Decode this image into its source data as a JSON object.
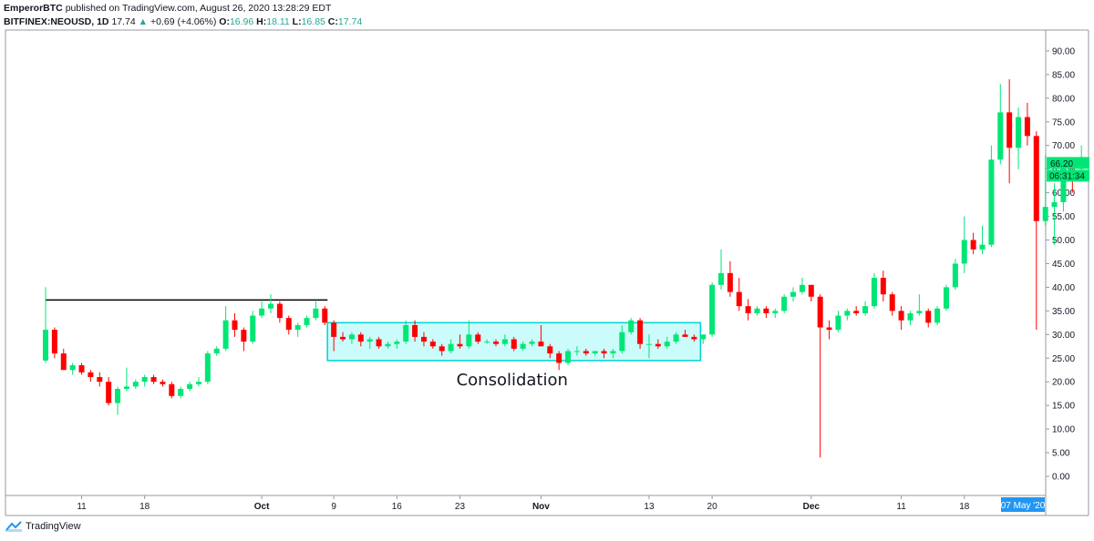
{
  "header": {
    "publisher": "EmperorBTC",
    "published_text": "published on TradingView.com, August 26, 2020 13:28:29 EDT",
    "symbol": "BITFINEX:NEOUSD, 1D",
    "last_price": "17.74",
    "change_arrow": "▲",
    "change": "+0.69 (+4.06%)",
    "o_label": "O:",
    "o_value": "16.96",
    "h_label": "H:",
    "h_value": "18.11",
    "l_label": "L:",
    "l_value": "16.85",
    "c_label": "C:",
    "c_value": "17.74"
  },
  "footer": {
    "brand": "TradingView"
  },
  "colors": {
    "up": "#00e676",
    "down": "#ff0000",
    "consolidation_fill": "#ccfbfb",
    "consolidation_border": "#00d2d2",
    "price_tag": "#00e676",
    "date_tag": "#2196f3"
  },
  "chart_data": {
    "type": "candlestick",
    "ylim": [
      -4,
      94
    ],
    "y_ticks": [
      "90.00",
      "85.00",
      "80.00",
      "75.00",
      "70.00",
      "65.00",
      "60.00",
      "55.00",
      "50.00",
      "45.00",
      "40.00",
      "35.00",
      "30.00",
      "25.00",
      "20.00",
      "15.00",
      "10.00",
      "5.00",
      "0.00"
    ],
    "x_ticks": [
      {
        "label": "11",
        "bar": 4,
        "bold": false
      },
      {
        "label": "18",
        "bar": 11,
        "bold": false
      },
      {
        "label": "Oct",
        "bar": 24,
        "bold": true
      },
      {
        "label": "9",
        "bar": 32,
        "bold": false
      },
      {
        "label": "16",
        "bar": 39,
        "bold": false
      },
      {
        "label": "23",
        "bar": 46,
        "bold": false
      },
      {
        "label": "Nov",
        "bar": 55,
        "bold": true
      },
      {
        "label": "13",
        "bar": 67,
        "bold": false
      },
      {
        "label": "20",
        "bar": 74,
        "bold": false
      },
      {
        "label": "Dec",
        "bar": 85,
        "bold": true
      },
      {
        "label": "11",
        "bar": 95,
        "bold": false
      },
      {
        "label": "18",
        "bar": 102,
        "bold": false
      }
    ],
    "candles": [
      {
        "o": 24.5,
        "h": 40.0,
        "l": 24.0,
        "c": 31.0
      },
      {
        "o": 31.0,
        "h": 31.5,
        "l": 25.0,
        "c": 26.0
      },
      {
        "o": 26.0,
        "h": 27.0,
        "l": 22.5,
        "c": 22.5
      },
      {
        "o": 22.5,
        "h": 24.0,
        "l": 21.5,
        "c": 23.5
      },
      {
        "o": 23.5,
        "h": 24.0,
        "l": 21.5,
        "c": 22.0
      },
      {
        "o": 22.0,
        "h": 22.5,
        "l": 20.0,
        "c": 21.0
      },
      {
        "o": 21.0,
        "h": 22.0,
        "l": 19.0,
        "c": 20.0
      },
      {
        "o": 20.0,
        "h": 21.0,
        "l": 15.0,
        "c": 15.5
      },
      {
        "o": 15.5,
        "h": 19.0,
        "l": 13.0,
        "c": 18.5
      },
      {
        "o": 18.5,
        "h": 23.0,
        "l": 18.0,
        "c": 19.0
      },
      {
        "o": 19.0,
        "h": 20.5,
        "l": 18.5,
        "c": 20.0
      },
      {
        "o": 20.0,
        "h": 21.5,
        "l": 19.0,
        "c": 21.0
      },
      {
        "o": 21.0,
        "h": 21.5,
        "l": 19.5,
        "c": 20.0
      },
      {
        "o": 20.0,
        "h": 20.5,
        "l": 19.0,
        "c": 19.5
      },
      {
        "o": 19.5,
        "h": 20.0,
        "l": 16.5,
        "c": 17.0
      },
      {
        "o": 17.0,
        "h": 19.0,
        "l": 16.5,
        "c": 18.5
      },
      {
        "o": 18.5,
        "h": 20.0,
        "l": 18.0,
        "c": 19.5
      },
      {
        "o": 19.5,
        "h": 21.0,
        "l": 19.0,
        "c": 20.0
      },
      {
        "o": 20.0,
        "h": 26.5,
        "l": 19.5,
        "c": 26.0
      },
      {
        "o": 26.0,
        "h": 27.5,
        "l": 25.5,
        "c": 27.0
      },
      {
        "o": 27.0,
        "h": 36.0,
        "l": 26.5,
        "c": 33.0
      },
      {
        "o": 33.0,
        "h": 34.5,
        "l": 29.5,
        "c": 31.0
      },
      {
        "o": 31.0,
        "h": 31.5,
        "l": 26.5,
        "c": 28.5
      },
      {
        "o": 28.5,
        "h": 35.0,
        "l": 28.0,
        "c": 34.0
      },
      {
        "o": 34.0,
        "h": 37.0,
        "l": 33.5,
        "c": 35.5
      },
      {
        "o": 35.5,
        "h": 38.5,
        "l": 34.5,
        "c": 36.5
      },
      {
        "o": 36.5,
        "h": 37.0,
        "l": 32.5,
        "c": 33.5
      },
      {
        "o": 33.5,
        "h": 34.0,
        "l": 30.0,
        "c": 31.0
      },
      {
        "o": 31.0,
        "h": 32.5,
        "l": 29.5,
        "c": 32.0
      },
      {
        "o": 32.0,
        "h": 34.0,
        "l": 31.5,
        "c": 33.5
      },
      {
        "o": 33.5,
        "h": 37.0,
        "l": 33.0,
        "c": 35.5
      },
      {
        "o": 35.5,
        "h": 36.0,
        "l": 32.0,
        "c": 32.5
      },
      {
        "o": 32.5,
        "h": 33.0,
        "l": 26.5,
        "c": 29.5
      },
      {
        "o": 29.5,
        "h": 30.5,
        "l": 28.5,
        "c": 29.0
      },
      {
        "o": 29.0,
        "h": 30.5,
        "l": 28.0,
        "c": 30.0
      },
      {
        "o": 30.0,
        "h": 30.5,
        "l": 27.5,
        "c": 28.5
      },
      {
        "o": 28.5,
        "h": 29.5,
        "l": 27.0,
        "c": 29.0
      },
      {
        "o": 29.0,
        "h": 29.5,
        "l": 27.0,
        "c": 27.5
      },
      {
        "o": 27.5,
        "h": 28.5,
        "l": 27.0,
        "c": 28.0
      },
      {
        "o": 28.0,
        "h": 29.0,
        "l": 27.0,
        "c": 28.5
      },
      {
        "o": 28.5,
        "h": 33.0,
        "l": 28.0,
        "c": 32.0
      },
      {
        "o": 32.0,
        "h": 33.0,
        "l": 28.5,
        "c": 29.5
      },
      {
        "o": 29.5,
        "h": 30.5,
        "l": 27.5,
        "c": 28.5
      },
      {
        "o": 28.5,
        "h": 29.0,
        "l": 27.0,
        "c": 27.5
      },
      {
        "o": 27.5,
        "h": 28.0,
        "l": 25.5,
        "c": 26.5
      },
      {
        "o": 26.5,
        "h": 29.0,
        "l": 26.0,
        "c": 28.0
      },
      {
        "o": 28.0,
        "h": 30.0,
        "l": 27.0,
        "c": 27.5
      },
      {
        "o": 27.5,
        "h": 33.0,
        "l": 27.0,
        "c": 30.0
      },
      {
        "o": 30.0,
        "h": 30.5,
        "l": 28.0,
        "c": 28.5
      },
      {
        "o": 28.5,
        "h": 29.0,
        "l": 28.0,
        "c": 28.5
      },
      {
        "o": 28.5,
        "h": 29.0,
        "l": 27.5,
        "c": 28.0
      },
      {
        "o": 28.0,
        "h": 30.0,
        "l": 27.5,
        "c": 29.0
      },
      {
        "o": 29.0,
        "h": 29.5,
        "l": 26.5,
        "c": 27.0
      },
      {
        "o": 27.0,
        "h": 28.5,
        "l": 26.5,
        "c": 28.0
      },
      {
        "o": 28.0,
        "h": 29.0,
        "l": 27.5,
        "c": 28.5
      },
      {
        "o": 28.5,
        "h": 32.0,
        "l": 28.0,
        "c": 27.5
      },
      {
        "o": 27.5,
        "h": 28.0,
        "l": 25.0,
        "c": 26.0
      },
      {
        "o": 26.0,
        "h": 26.5,
        "l": 22.5,
        "c": 24.0
      },
      {
        "o": 24.0,
        "h": 27.0,
        "l": 23.5,
        "c": 26.5
      },
      {
        "o": 26.5,
        "h": 27.5,
        "l": 25.5,
        "c": 26.5
      },
      {
        "o": 26.5,
        "h": 27.0,
        "l": 25.5,
        "c": 26.0
      },
      {
        "o": 26.0,
        "h": 26.5,
        "l": 25.5,
        "c": 26.5
      },
      {
        "o": 26.5,
        "h": 27.0,
        "l": 25.0,
        "c": 26.0
      },
      {
        "o": 26.0,
        "h": 27.0,
        "l": 25.0,
        "c": 26.5
      },
      {
        "o": 26.5,
        "h": 32.0,
        "l": 26.0,
        "c": 30.5
      },
      {
        "o": 30.5,
        "h": 33.5,
        "l": 30.0,
        "c": 33.0
      },
      {
        "o": 33.0,
        "h": 33.5,
        "l": 27.0,
        "c": 28.0
      },
      {
        "o": 28.0,
        "h": 30.0,
        "l": 25.0,
        "c": 28.0
      },
      {
        "o": 28.0,
        "h": 29.0,
        "l": 27.0,
        "c": 27.5
      },
      {
        "o": 27.5,
        "h": 29.5,
        "l": 27.0,
        "c": 28.5
      },
      {
        "o": 28.5,
        "h": 30.5,
        "l": 28.0,
        "c": 30.0
      },
      {
        "o": 30.0,
        "h": 31.0,
        "l": 29.5,
        "c": 29.5
      },
      {
        "o": 29.5,
        "h": 30.0,
        "l": 28.5,
        "c": 29.0
      },
      {
        "o": 29.0,
        "h": 30.0,
        "l": 28.0,
        "c": 30.0
      },
      {
        "o": 30.0,
        "h": 41.0,
        "l": 29.5,
        "c": 40.5
      },
      {
        "o": 40.5,
        "h": 48.0,
        "l": 39.5,
        "c": 43.0
      },
      {
        "o": 43.0,
        "h": 45.5,
        "l": 38.0,
        "c": 39.0
      },
      {
        "o": 39.0,
        "h": 42.0,
        "l": 35.0,
        "c": 36.0
      },
      {
        "o": 36.0,
        "h": 37.5,
        "l": 33.0,
        "c": 34.5
      },
      {
        "o": 34.5,
        "h": 36.0,
        "l": 34.0,
        "c": 35.5
      },
      {
        "o": 35.5,
        "h": 36.0,
        "l": 33.5,
        "c": 34.5
      },
      {
        "o": 34.5,
        "h": 35.5,
        "l": 33.5,
        "c": 35.0
      },
      {
        "o": 35.0,
        "h": 38.5,
        "l": 34.5,
        "c": 38.0
      },
      {
        "o": 38.0,
        "h": 40.0,
        "l": 37.0,
        "c": 39.0
      },
      {
        "o": 39.0,
        "h": 42.0,
        "l": 38.5,
        "c": 40.5
      },
      {
        "o": 40.5,
        "h": 40.5,
        "l": 37.0,
        "c": 38.0
      },
      {
        "o": 38.0,
        "h": 38.5,
        "l": 4.0,
        "c": 31.5
      },
      {
        "o": 31.5,
        "h": 33.0,
        "l": 29.0,
        "c": 31.0
      },
      {
        "o": 31.0,
        "h": 35.0,
        "l": 30.5,
        "c": 34.0
      },
      {
        "o": 34.0,
        "h": 35.5,
        "l": 33.0,
        "c": 35.0
      },
      {
        "o": 35.0,
        "h": 36.0,
        "l": 34.0,
        "c": 34.5
      },
      {
        "o": 34.5,
        "h": 37.0,
        "l": 34.0,
        "c": 36.0
      },
      {
        "o": 36.0,
        "h": 43.0,
        "l": 35.5,
        "c": 42.0
      },
      {
        "o": 42.0,
        "h": 43.5,
        "l": 37.0,
        "c": 38.5
      },
      {
        "o": 38.5,
        "h": 39.0,
        "l": 34.0,
        "c": 35.0
      },
      {
        "o": 35.0,
        "h": 36.0,
        "l": 31.0,
        "c": 33.0
      },
      {
        "o": 33.0,
        "h": 35.0,
        "l": 32.0,
        "c": 34.5
      },
      {
        "o": 34.5,
        "h": 38.5,
        "l": 34.0,
        "c": 35.0
      },
      {
        "o": 35.0,
        "h": 35.5,
        "l": 31.5,
        "c": 32.5
      },
      {
        "o": 32.5,
        "h": 36.0,
        "l": 32.0,
        "c": 35.5
      },
      {
        "o": 35.5,
        "h": 40.5,
        "l": 35.0,
        "c": 40.0
      },
      {
        "o": 40.0,
        "h": 46.0,
        "l": 39.5,
        "c": 45.0
      },
      {
        "o": 45.0,
        "h": 55.0,
        "l": 43.0,
        "c": 50.0
      },
      {
        "o": 50.0,
        "h": 51.5,
        "l": 47.0,
        "c": 48.0
      },
      {
        "o": 48.0,
        "h": 53.0,
        "l": 47.0,
        "c": 49.0
      },
      {
        "o": 49.0,
        "h": 70.0,
        "l": 48.5,
        "c": 67.0
      },
      {
        "o": 67.0,
        "h": 83.0,
        "l": 66.0,
        "c": 77.0
      },
      {
        "o": 77.0,
        "h": 84.0,
        "l": 62.0,
        "c": 69.5
      },
      {
        "o": 69.5,
        "h": 78.0,
        "l": 65.0,
        "c": 76.0
      },
      {
        "o": 76.0,
        "h": 79.0,
        "l": 70.0,
        "c": 72.0
      },
      {
        "o": 72.0,
        "h": 73.0,
        "l": 31.0,
        "c": 54.0
      },
      {
        "o": 54.0,
        "h": 68.0,
        "l": 53.0,
        "c": 57.0
      },
      {
        "o": 57.0,
        "h": 62.0,
        "l": 49.0,
        "c": 58.0
      },
      {
        "o": 58.0,
        "h": 67.5,
        "l": 56.0,
        "c": 65.5
      },
      {
        "o": 65.5,
        "h": 67.5,
        "l": 60.0,
        "c": 65.0
      },
      {
        "o": 65.0,
        "h": 70.0,
        "l": 64.0,
        "c": 66.2
      }
    ],
    "resistance_line": {
      "value": 37.3,
      "from_bar": 0,
      "to_bar": 31
    },
    "consolidation": {
      "label": "Consolidation",
      "from_bar": 32,
      "to_bar": 72,
      "top": 32.5,
      "bottom": 24.5
    },
    "last_price_tag": "66.20",
    "countdown_tag": "06:31:34",
    "cursor_date_tag": "07 May '20"
  }
}
